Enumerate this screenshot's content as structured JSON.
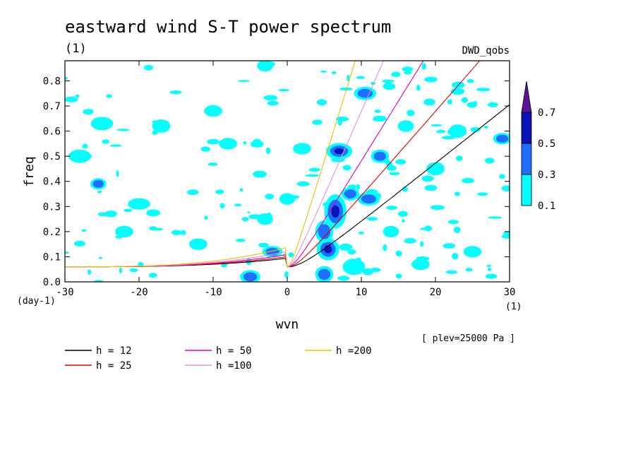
{
  "chart_data": {
    "type": "heatmap",
    "title": "eastward wind S-T power spectrum",
    "subtitle": "(1)",
    "dataset_label": "DWD_qobs",
    "xlabel": "wvn",
    "ylabel": "freq",
    "x_unit": "(1)",
    "y_unit": "(day-1)",
    "xlim": [
      -30,
      30
    ],
    "ylim": [
      0,
      0.88
    ],
    "x_ticks": [
      "-30",
      "-20",
      "-10",
      "0",
      "10",
      "20",
      "30"
    ],
    "y_ticks": [
      "0.0",
      "0.1",
      "0.2",
      "0.3",
      "0.4",
      "0.5",
      "0.6",
      "0.7",
      "0.8"
    ],
    "plev_note": "[ plev=25000 Pa ]",
    "colorbar": {
      "levels": [
        "0.1",
        "0.3",
        "0.5",
        "0.7"
      ],
      "colors": [
        "#00ffff",
        "#1e6eff",
        "#0a14b4",
        "#5a1496"
      ]
    },
    "series": [
      {
        "name": "h = 12",
        "color": "#000000",
        "h": 12
      },
      {
        "name": "h = 25",
        "color": "#e00000",
        "h": 25
      },
      {
        "name": "h = 50",
        "color": "#e000b0",
        "h": 50
      },
      {
        "name": "h =100",
        "color": "#e090e0",
        "h": 100
      },
      {
        "name": "h =200",
        "color": "#f0c000",
        "h": 200
      }
    ],
    "blobs": [
      [
        7,
        0.52,
        1.0,
        0.02,
        3
      ],
      [
        6.5,
        0.28,
        0.8,
        0.05,
        3
      ],
      [
        5.5,
        0.13,
        0.8,
        0.03,
        3
      ],
      [
        5,
        0.2,
        0.6,
        0.03,
        2
      ],
      [
        5,
        0.03,
        0.6,
        0.02,
        2
      ],
      [
        -5,
        0.02,
        0.7,
        0.015,
        2
      ],
      [
        10.5,
        0.75,
        0.8,
        0.015,
        2
      ],
      [
        12.5,
        0.5,
        0.6,
        0.015,
        2
      ],
      [
        11,
        0.33,
        0.8,
        0.015,
        2
      ],
      [
        8.5,
        0.35,
        0.6,
        0.015,
        2
      ],
      [
        -25.5,
        0.39,
        0.5,
        0.012,
        2
      ],
      [
        29,
        0.57,
        0.6,
        0.012,
        2
      ],
      [
        -2,
        0.12,
        0.7,
        0.012,
        2
      ],
      [
        23,
        0.6,
        0.6,
        0.015,
        1
      ],
      [
        20,
        0.45,
        0.6,
        0.015,
        1
      ],
      [
        14,
        0.2,
        0.5,
        0.012,
        1
      ],
      [
        -12,
        0.15,
        0.6,
        0.012,
        1
      ],
      [
        -20,
        0.31,
        0.8,
        0.012,
        1
      ],
      [
        -17,
        0.62,
        0.6,
        0.015,
        1
      ],
      [
        -28,
        0.5,
        0.8,
        0.015,
        1
      ],
      [
        -25,
        0.63,
        0.8,
        0.015,
        1
      ],
      [
        -8,
        0.55,
        0.6,
        0.012,
        1
      ],
      [
        -10,
        0.68,
        0.6,
        0.012,
        1
      ],
      [
        2,
        0.53,
        0.6,
        0.012,
        1
      ],
      [
        16,
        0.62,
        0.5,
        0.012,
        1
      ],
      [
        -3,
        0.86,
        0.5,
        0.012,
        1
      ],
      [
        25,
        0.12,
        0.6,
        0.012,
        1
      ],
      [
        18,
        0.07,
        0.6,
        0.012,
        1
      ],
      [
        -22,
        0.2,
        0.6,
        0.012,
        1
      ],
      [
        0,
        0.33,
        0.5,
        0.012,
        1
      ],
      [
        9,
        0.06,
        0.8,
        0.02,
        1
      ],
      [
        -3,
        0.25,
        0.5,
        0.012,
        1
      ]
    ]
  }
}
